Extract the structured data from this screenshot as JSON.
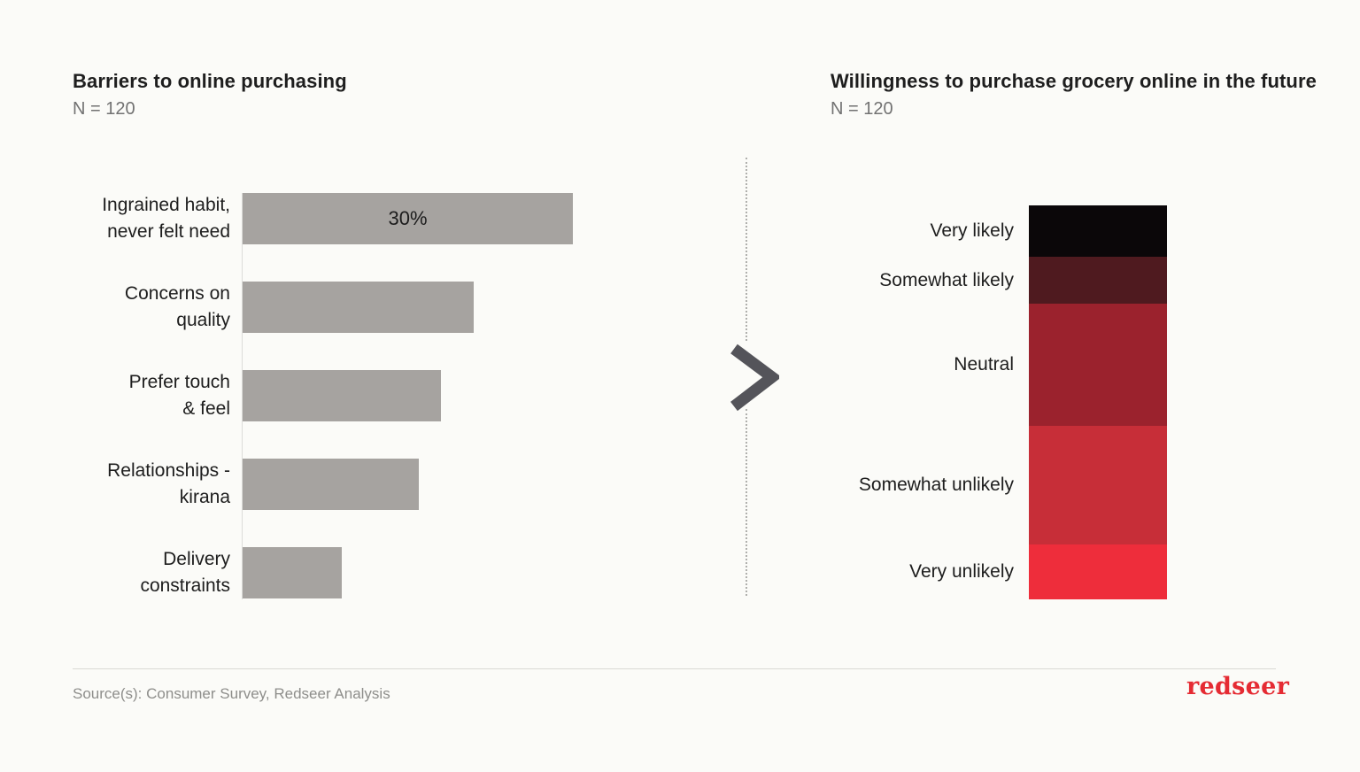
{
  "page": {
    "background": "#fbfbf8"
  },
  "chart_data": [
    {
      "type": "bar",
      "orientation": "horizontal",
      "title": "Barriers to online purchasing",
      "subtitle": "N = 120",
      "categories": [
        "Ingrained habit,\nnever felt need",
        "Concerns on\nquality",
        "Prefer touch\n& feel",
        "Relationships -\nkirana",
        "Delivery\nconstraints"
      ],
      "values": [
        30,
        21,
        18,
        16,
        9
      ],
      "value_labels": [
        "30%",
        "",
        "",
        "",
        ""
      ],
      "unit": "%",
      "xlim": [
        0,
        30
      ],
      "bar_color": "#a6a3a0",
      "grid": "off",
      "legend": "none"
    },
    {
      "type": "bar",
      "orientation": "vertical-stacked",
      "title": "Willingness to purchase grocery online in the future",
      "subtitle": "N = 120",
      "categories": [
        "Very likely",
        "Somewhat likely",
        "Neutral",
        "Somewhat unlikely",
        "Very unlikely"
      ],
      "values": [
        13,
        12,
        31,
        30,
        14
      ],
      "unit": "%",
      "colors": [
        "#0b0709",
        "#4f1a1f",
        "#9b222d",
        "#c72e38",
        "#ee2d3b"
      ],
      "grid": "off",
      "legend": "labels-left-of-segments"
    }
  ],
  "icons": {
    "between_charts": "chevron-right-icon",
    "chevron_color": "#54545a"
  },
  "divider": {
    "style": "vertical-dotted",
    "color": "#b0b0ad"
  },
  "footer": {
    "source": "Source(s): Consumer Survey, Redseer Analysis",
    "logo_text": "redseer",
    "logo_color": "#e52b33"
  }
}
